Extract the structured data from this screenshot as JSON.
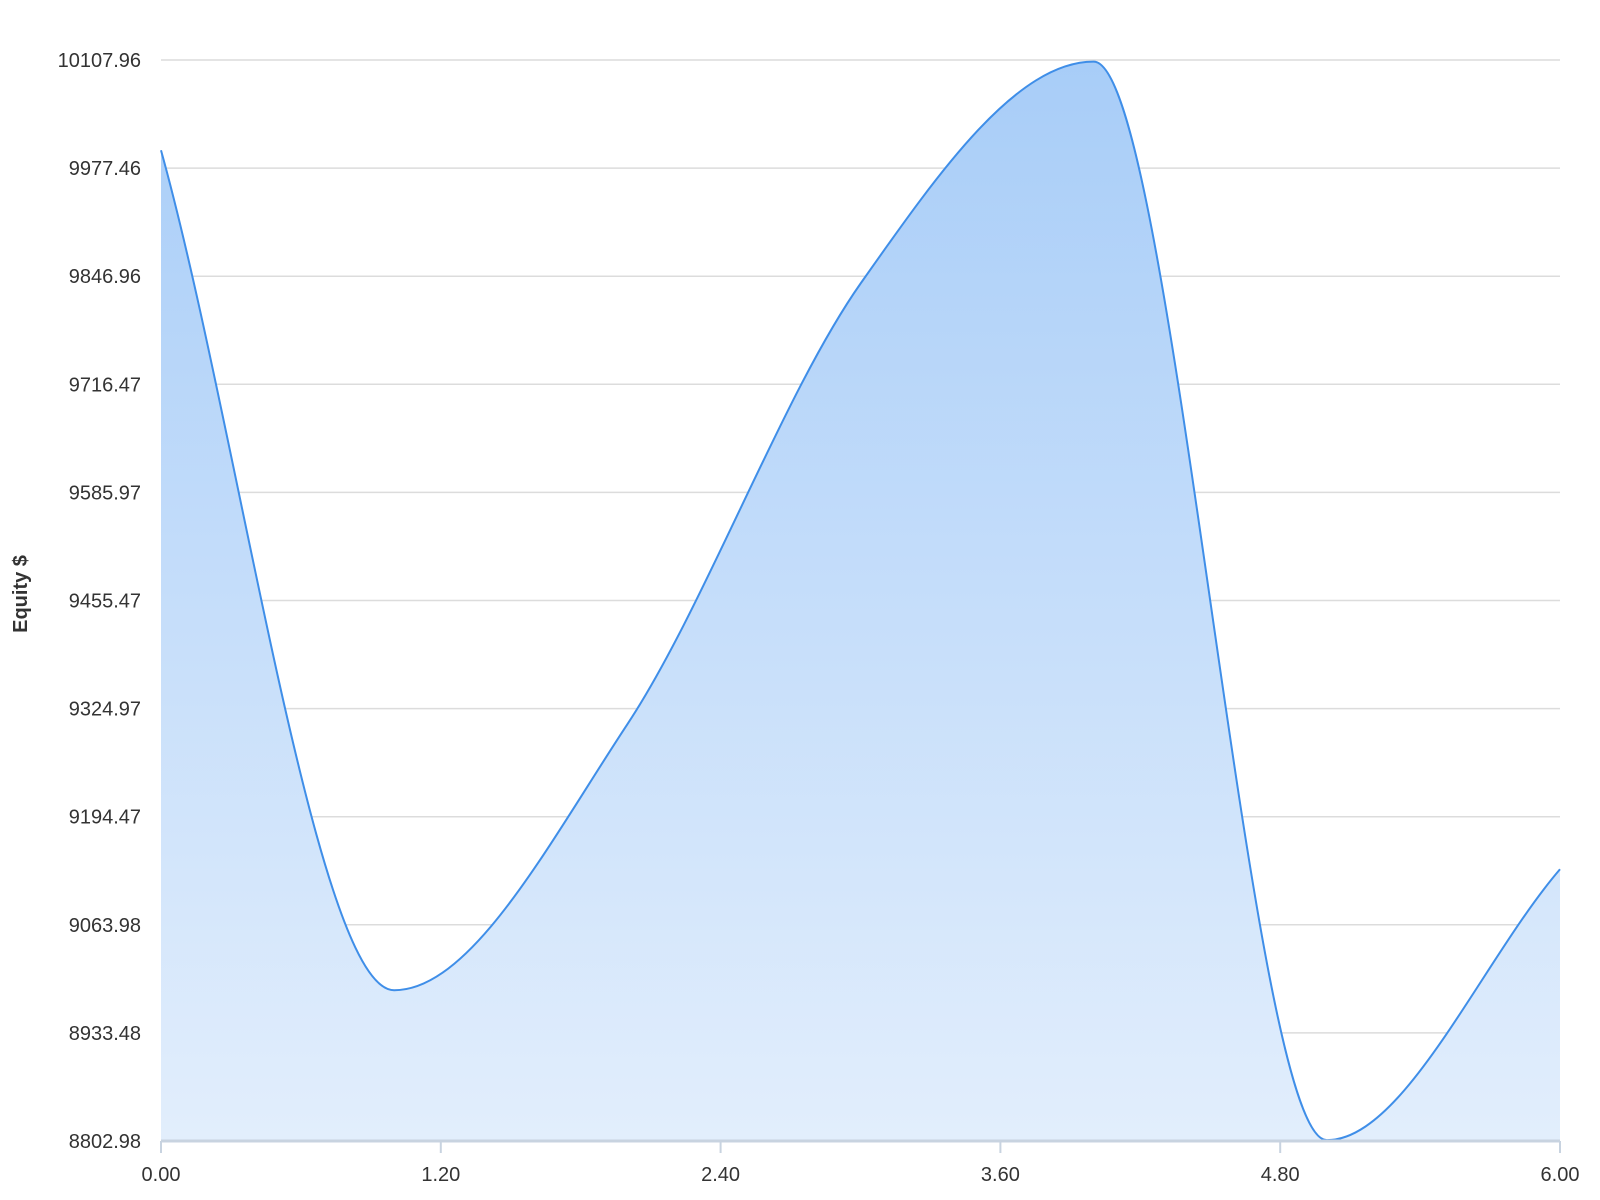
{
  "chart_data": {
    "type": "area",
    "title": "",
    "xlabel": "",
    "ylabel": "Equity $",
    "xlim": [
      0,
      6
    ],
    "ylim": [
      8802.98,
      10107.96
    ],
    "x_ticks": [
      "0.00",
      "1.20",
      "2.40",
      "3.60",
      "4.80",
      "6.00"
    ],
    "y_ticks": [
      "10107.96",
      "9977.46",
      "9846.96",
      "9716.47",
      "9585.97",
      "9455.47",
      "9324.97",
      "9194.47",
      "9063.98",
      "8933.48",
      "8802.98"
    ],
    "grid": true,
    "legend": "none",
    "series": [
      {
        "x": [
          0,
          1,
          2,
          3,
          4,
          5,
          6
        ],
        "y": [
          9999,
          8985,
          9306,
          9838,
          10106,
          8804,
          9131
        ]
      }
    ],
    "colors": {
      "line": "#3f8ee8",
      "fill_top": "#a8cdf8",
      "fill_bottom": "#e2eefc",
      "grid": "#dcdcdc",
      "axis": "#c8d3e0",
      "text": "#333333"
    }
  }
}
